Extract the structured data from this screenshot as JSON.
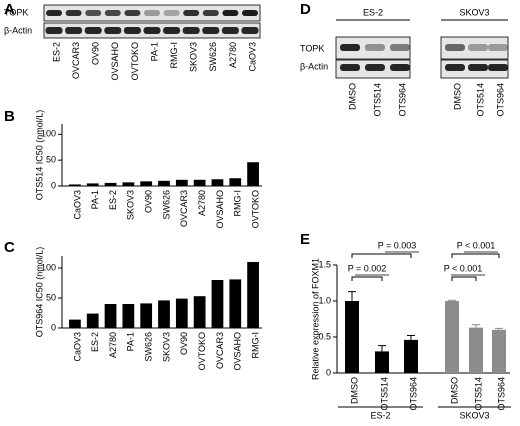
{
  "panel_labels": [
    "A",
    "B",
    "C",
    "D",
    "E"
  ],
  "blot_a": {
    "rows": [
      "TOPK",
      "β-Actin"
    ],
    "lanes": [
      "ES-2",
      "OVCAR3",
      "OV90",
      "OVSAHO",
      "OVTOKO",
      "PA-1",
      "RMG-I",
      "SKOV3",
      "SW626",
      "A2780",
      "CaOV3"
    ]
  },
  "blot_d": {
    "groups": [
      "ES-2",
      "SKOV3"
    ],
    "rows": [
      "TOPK",
      "β-Actin"
    ],
    "lanes": [
      "DMSO",
      "OTS514",
      "OTS964"
    ]
  },
  "chart_data": [
    {
      "type": "bar",
      "y_label": "OTS514 IC50 (nmol/L)",
      "categories": [
        "CaOV3",
        "PA-1",
        "ES-2",
        "SKOV3",
        "OV90",
        "SW626",
        "OVCAR3",
        "A2780",
        "OVSAHO",
        "RMG-I",
        "OVTOKO"
      ],
      "values": [
        3,
        5,
        6,
        7,
        9,
        10,
        12,
        12,
        13,
        15,
        46
      ],
      "color": "#000000",
      "ylim": [
        0,
        120
      ],
      "yticks": [
        0,
        50,
        100
      ]
    },
    {
      "type": "bar",
      "y_label": "OTS964 IC50 (nmol/L)",
      "categories": [
        "CaOV3",
        "ES-2",
        "A2780",
        "PA-1",
        "SW626",
        "SKOV3",
        "OV90",
        "OVTOKO",
        "OVCAR3",
        "OVSAHO",
        "RMG-I"
      ],
      "values": [
        14,
        24,
        40,
        40,
        41,
        46,
        49,
        53,
        80,
        81,
        110
      ],
      "color": "#000000",
      "ylim": [
        0,
        120
      ],
      "yticks": [
        0,
        50,
        100
      ]
    },
    {
      "type": "grouped-bar",
      "y_label": "Relative expression of FOXM1",
      "categories": [
        "DMSO",
        "OTS514",
        "OTS964"
      ],
      "series": [
        {
          "name": "ES-2",
          "color": "#000000",
          "values": [
            1.0,
            0.3,
            0.46
          ],
          "errors": [
            0.13,
            0.08,
            0.06
          ]
        },
        {
          "name": "SKOV3",
          "color": "#8c8c8c",
          "values": [
            1.0,
            0.63,
            0.6
          ],
          "errors": [
            0.01,
            0.04,
            0.02
          ]
        }
      ],
      "ylim": [
        0,
        1.5
      ],
      "yticks": [
        0,
        0.5,
        {
          "value": 1,
          "label": "1.0"
        },
        1.5
      ],
      "annotations": [
        "P = 0.003",
        "P = 0.002",
        "P < 0.001",
        "P < 0.001"
      ]
    }
  ]
}
